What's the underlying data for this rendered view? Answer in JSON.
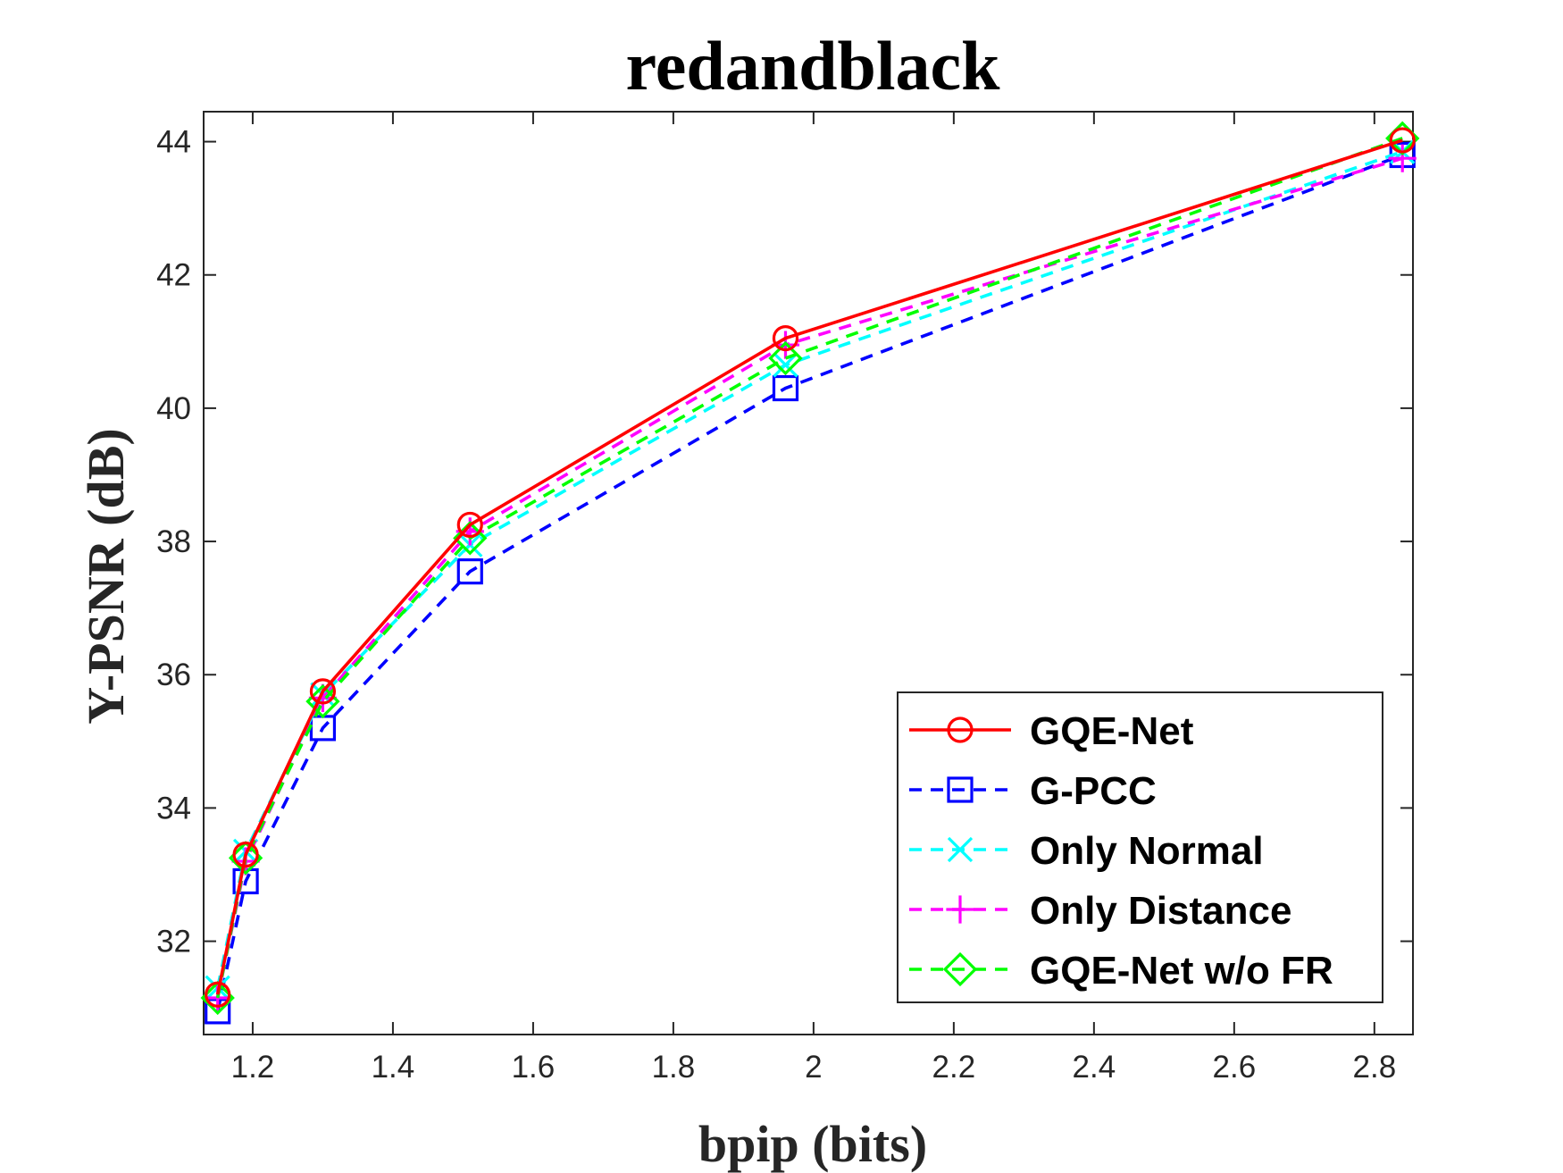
{
  "chart_data": {
    "type": "line",
    "title": "redandblack",
    "xlabel": "bpip (bits)",
    "ylabel": "Y-PSNR (dB)",
    "xlim": [
      1.13,
      2.855
    ],
    "ylim": [
      30.6,
      44.45
    ],
    "xticks": [
      1.2,
      1.4,
      1.6,
      1.8,
      2,
      2.2,
      2.4,
      2.6,
      2.8
    ],
    "xtick_labels": [
      "1.2",
      "1.4",
      "1.6",
      "1.8",
      "2",
      "2.2",
      "2.4",
      "2.6",
      "2.8"
    ],
    "yticks": [
      32,
      34,
      36,
      38,
      40,
      42,
      44
    ],
    "ytick_labels": [
      "32",
      "34",
      "36",
      "38",
      "40",
      "42",
      "44"
    ],
    "grid": false,
    "legend_position": "bottom-right",
    "series": [
      {
        "name": "GQE-Net",
        "color": "#ff0000",
        "dash": "solid",
        "marker": "circle",
        "x": [
          1.15,
          1.19,
          1.3,
          1.51,
          1.96,
          2.84
        ],
        "y": [
          31.2,
          33.3,
          35.75,
          38.25,
          41.05,
          44.02
        ]
      },
      {
        "name": "G-PCC",
        "color": "#0000ff",
        "dash": "dashed",
        "marker": "square",
        "x": [
          1.15,
          1.19,
          1.3,
          1.51,
          1.96,
          2.84
        ],
        "y": [
          30.95,
          32.9,
          35.2,
          37.55,
          40.3,
          43.8
        ]
      },
      {
        "name": "Only Normal",
        "color": "#00ffff",
        "dash": "dashed",
        "marker": "x",
        "x": [
          1.15,
          1.19,
          1.3,
          1.51,
          1.96,
          2.84
        ],
        "y": [
          31.3,
          33.35,
          35.7,
          37.95,
          40.65,
          43.85
        ]
      },
      {
        "name": "Only Distance",
        "color": "#ff00ff",
        "dash": "dashed",
        "marker": "plus",
        "x": [
          1.15,
          1.19,
          1.3,
          1.51,
          1.96,
          2.84
        ],
        "y": [
          31.15,
          33.2,
          35.65,
          38.15,
          40.95,
          43.75
        ]
      },
      {
        "name": "GQE-Net w/o FR",
        "color": "#00ff00",
        "dash": "dashed",
        "marker": "diamond",
        "x": [
          1.15,
          1.19,
          1.3,
          1.51,
          1.96,
          2.84
        ],
        "y": [
          31.15,
          33.25,
          35.6,
          38.05,
          40.75,
          44.05
        ]
      }
    ]
  }
}
